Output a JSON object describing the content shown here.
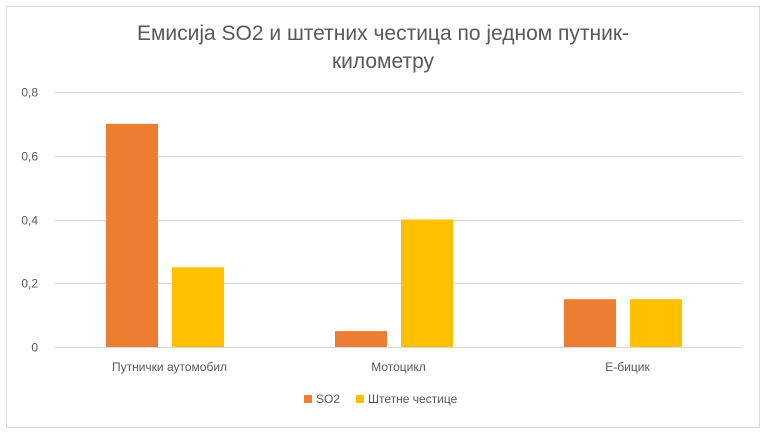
{
  "chart_data": {
    "type": "bar",
    "title_lines": [
      "Емисија SO2 и штетних честица по једном путник-",
      "километру"
    ],
    "categories": [
      "Путнички аутомобил",
      "Мотоцикл",
      "Е-бицик"
    ],
    "series": [
      {
        "name": "SO2",
        "values": [
          0.7,
          0.05,
          0.15
        ],
        "color": "#ED7D31"
      },
      {
        "name": "Штетне честице",
        "values": [
          0.25,
          0.4,
          0.15
        ],
        "color": "#FFC000"
      }
    ],
    "yticks": [
      "0",
      "0,2",
      "0,4",
      "0,6",
      "0,8"
    ],
    "ytick_values": [
      0,
      0.2,
      0.4,
      0.6,
      0.8
    ],
    "ylim": [
      0,
      0.8
    ],
    "xlabel": "",
    "ylabel": "",
    "grid": true,
    "legend_position": "bottom"
  }
}
